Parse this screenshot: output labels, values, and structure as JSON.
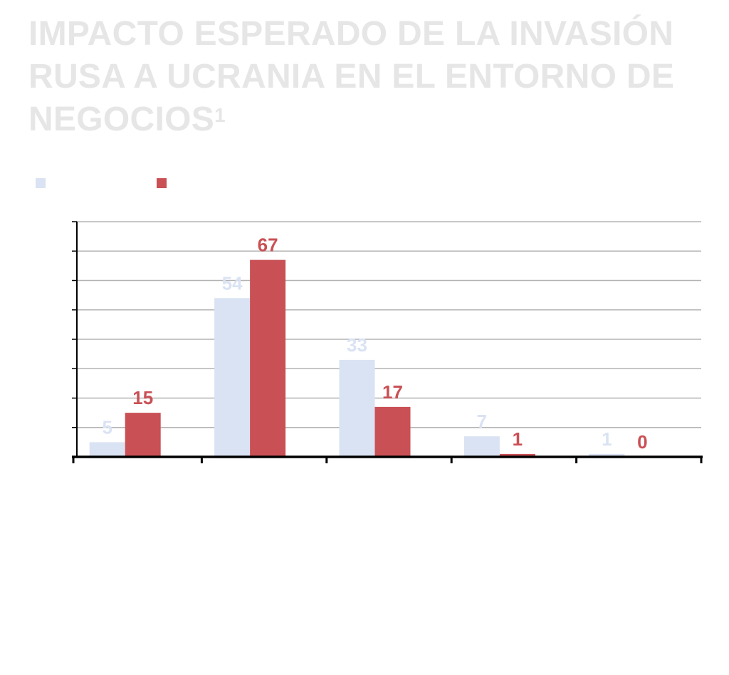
{
  "title": {
    "text": "IMPACTO ESPERADO DE LA INVASIÓN RUSA A UCRANIA EN EL ENTORNO DE NEGOCIOS",
    "footnote_mark": "1"
  },
  "colors": {
    "series_1": "#dae3f3",
    "series_2": "#c95055",
    "title": "#e6e6e6",
    "grid": "#b3b3b3",
    "axis": "#000000"
  },
  "chart_data": {
    "type": "bar",
    "categories": [
      "",
      "",
      "",
      "",
      ""
    ],
    "series": [
      {
        "values": [
          5,
          54,
          33,
          7,
          1
        ],
        "color": "#dae3f3"
      },
      {
        "values": [
          15,
          67,
          17,
          1,
          0
        ],
        "color": "#c95055"
      }
    ],
    "ylim": [
      0,
      80
    ],
    "y_tick_step": 10,
    "grid": true,
    "legend_position": "top-left",
    "data_labels": true
  }
}
